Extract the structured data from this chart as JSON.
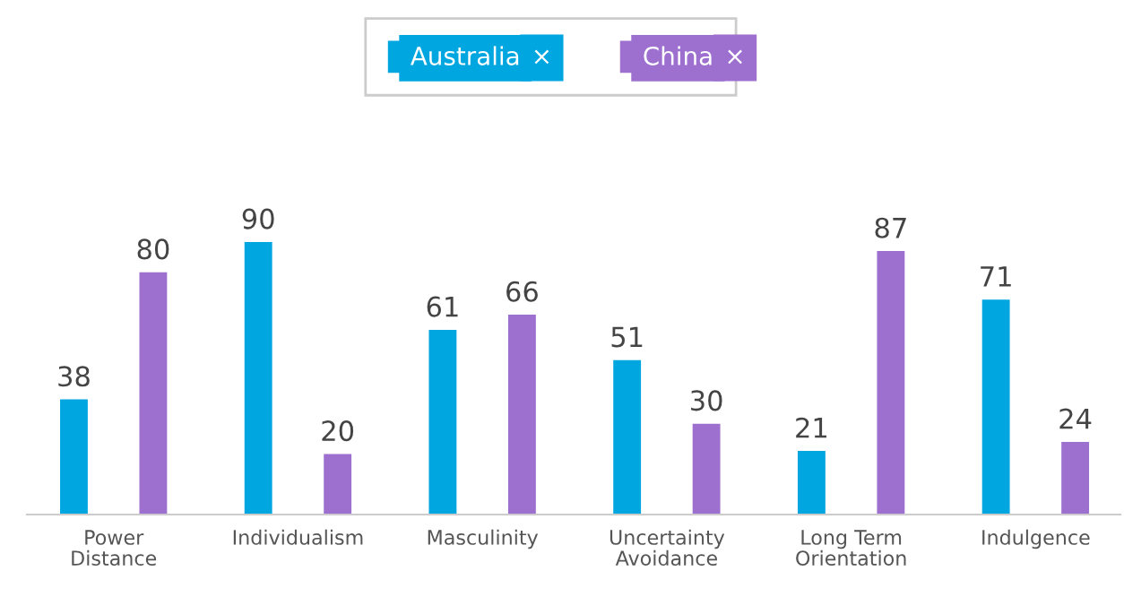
{
  "chart_data": {
    "type": "bar",
    "categories": [
      "Power\nDistance",
      "Individualism",
      "Masculinity",
      "Uncertainty\nAvoidance",
      "Long Term\nOrientation",
      "Indulgence"
    ],
    "series": [
      {
        "name": "Australia",
        "color": "#00a6e0",
        "values": [
          38,
          90,
          61,
          51,
          21,
          71
        ]
      },
      {
        "name": "China",
        "color": "#9d70cf",
        "values": [
          80,
          20,
          66,
          30,
          87,
          24
        ]
      }
    ],
    "annotations": [
      "×",
      "×"
    ],
    "data_labels": true,
    "legend": "top",
    "grid": false
  }
}
